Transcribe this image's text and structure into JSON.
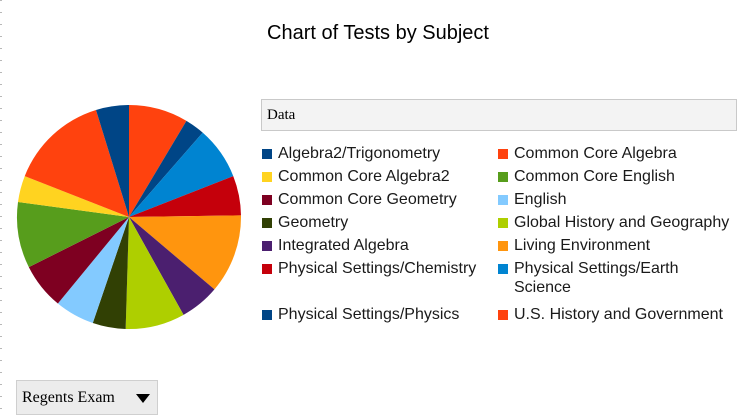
{
  "chart_data": {
    "type": "pie",
    "title": "Chart of Tests by Subject",
    "legend_title": "Data",
    "legend_position": "right",
    "series": [
      {
        "name": "Algebra2/Trigonometry",
        "value": 5,
        "color": "#004586"
      },
      {
        "name": "Common Core Algebra",
        "value": 9,
        "color": "#ff420e"
      },
      {
        "name": "Common Core Algebra2",
        "value": 4,
        "color": "#ffd320"
      },
      {
        "name": "Common Core English",
        "value": 10,
        "color": "#579d1c"
      },
      {
        "name": "Common Core Geometry",
        "value": 7,
        "color": "#7e0021"
      },
      {
        "name": "English",
        "value": 6,
        "color": "#83caff"
      },
      {
        "name": "Geometry",
        "value": 5,
        "color": "#314004"
      },
      {
        "name": "Global History and Geography",
        "value": 9,
        "color": "#aecf00"
      },
      {
        "name": "Integrated Algebra",
        "value": 6,
        "color": "#4b1f6f"
      },
      {
        "name": "Living Environment",
        "value": 12,
        "color": "#ff950e"
      },
      {
        "name": "Physical Settings/Chemistry",
        "value": 6,
        "color": "#c5000b"
      },
      {
        "name": "Physical Settings/Earth Science",
        "value": 8,
        "color": "#0084d1"
      },
      {
        "name": "Physical Settings/Physics",
        "value": 3,
        "color": "#004586"
      },
      {
        "name": "U.S. History and Government",
        "value": 15,
        "color": "#ff420e"
      }
    ],
    "slice_order": [
      1,
      12,
      11,
      10,
      9,
      8,
      7,
      6,
      5,
      4,
      3,
      2,
      13,
      0
    ]
  },
  "dropdown": {
    "selected": "Regents Exam",
    "icon": "chevron-down-icon"
  }
}
